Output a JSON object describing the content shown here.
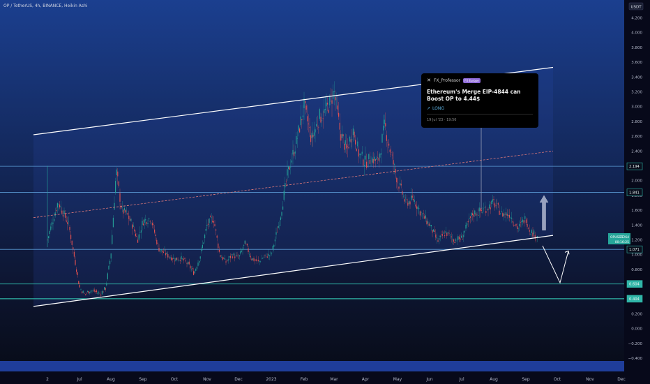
{
  "header": {
    "symbol_title": "OP / TetherUS, 4h, BINANCE, Heikin Ashi"
  },
  "quote_currency": "USDT",
  "current_price_label": {
    "symbol": "OPUSDT",
    "price": "1.264",
    "countdown": "00:16:25"
  },
  "idea_card": {
    "author": "FX_Professor",
    "badge": "FX Europe",
    "title": "Ethereum's Merge EIP-4844 can Boost OP to 4.44$",
    "direction": "LONG",
    "timestamp": "19 Jul '23 · 19:56"
  },
  "colors": {
    "background_top": "#1b3f8f",
    "background_bottom": "#070a14",
    "channel_line": "#ffffff",
    "midline_dashed": "#e07a7a",
    "level_line": "#5b9bd5",
    "level_tag": "#30b6a8",
    "up_candle": "#26a69a",
    "down_candle": "#ef5350",
    "arrow_up": "#c5cbe0",
    "price_tag": "#26a69a"
  },
  "chart_data": {
    "type": "candlestick",
    "title": "OP / TetherUS, 4h, BINANCE, Heikin Ashi",
    "ylim": [
      -0.4,
      4.4
    ],
    "y_ticks": [
      "4.200",
      "4.000",
      "3.800",
      "3.600",
      "3.400",
      "3.200",
      "3.000",
      "2.800",
      "2.600",
      "2.400",
      "2.200",
      "2.000",
      "1.800",
      "1.600",
      "1.400",
      "1.200",
      "1.000",
      "0.800",
      "0.600",
      "0.400",
      "0.200",
      "0.000",
      "−0.200",
      "−0.400"
    ],
    "x_ticks": [
      "2",
      "Jul",
      "Aug",
      "Sep",
      "Oct",
      "Nov",
      "Dec",
      "2023",
      "Feb",
      "Mar",
      "Apr",
      "May",
      "Jun",
      "Jul",
      "Aug",
      "Sep",
      "Oct",
      "Nov",
      "Dec"
    ],
    "horizontal_levels": [
      {
        "value": 2.194,
        "label": "2.194",
        "tag": "outline"
      },
      {
        "value": 1.841,
        "label": "1.841",
        "tag": "outline"
      },
      {
        "value": 1.071,
        "label": "1.071",
        "tag": "outline"
      },
      {
        "value": 0.604,
        "label": "0.604",
        "tag": "filled"
      },
      {
        "value": 0.404,
        "label": "0.404",
        "tag": "filled"
      }
    ],
    "price_path": [
      [
        "2",
        1.2
      ],
      [
        "2",
        1.72
      ],
      [
        "2",
        1.4
      ],
      [
        "Jul",
        0.56
      ],
      [
        "Jul",
        0.46
      ],
      [
        "Jul",
        0.52
      ],
      [
        "Jul",
        0.5
      ],
      [
        "Jul",
        0.47
      ],
      [
        "Jul",
        0.55
      ],
      [
        "Aug",
        1.0
      ],
      [
        "Aug",
        2.15
      ],
      [
        "Aug",
        1.6
      ],
      [
        "Aug",
        1.55
      ],
      [
        "Aug",
        1.4
      ],
      [
        "Aug",
        1.2
      ],
      [
        "Sep",
        1.45
      ],
      [
        "Sep",
        1.5
      ],
      [
        "Sep",
        1.08
      ],
      [
        "Sep",
        1.0
      ],
      [
        "Oct",
        0.94
      ],
      [
        "Oct",
        0.95
      ],
      [
        "Oct",
        0.88
      ],
      [
        "Oct",
        0.75
      ],
      [
        "Oct",
        1.0
      ],
      [
        "Nov",
        1.4
      ],
      [
        "Nov",
        1.5
      ],
      [
        "Nov",
        1.0
      ],
      [
        "Nov",
        0.9
      ],
      [
        "Nov",
        1.0
      ],
      [
        "Dec",
        0.95
      ],
      [
        "Dec",
        1.15
      ],
      [
        "Dec",
        0.95
      ],
      [
        "Dec",
        0.9
      ],
      [
        "Dec",
        0.98
      ],
      [
        "2023",
        1.0
      ],
      [
        "2023",
        1.45
      ],
      [
        "2023",
        2.1
      ],
      [
        "2023",
        2.5
      ],
      [
        "Feb",
        3.0
      ],
      [
        "Feb",
        2.55
      ],
      [
        "Feb",
        2.85
      ],
      [
        "Feb",
        2.95
      ],
      [
        "Mar",
        3.2
      ],
      [
        "Mar",
        2.65
      ],
      [
        "Mar",
        2.4
      ],
      [
        "Mar",
        2.7
      ],
      [
        "Mar",
        2.35
      ],
      [
        "Apr",
        2.25
      ],
      [
        "Apr",
        2.3
      ],
      [
        "Apr",
        2.25
      ],
      [
        "Apr",
        2.75
      ],
      [
        "Apr",
        2.35
      ],
      [
        "May",
        2.0
      ],
      [
        "May",
        1.7
      ],
      [
        "May",
        1.75
      ],
      [
        "May",
        1.55
      ],
      [
        "Jun",
        1.4
      ],
      [
        "Jun",
        1.18
      ],
      [
        "Jun",
        1.3
      ],
      [
        "Jun",
        1.2
      ],
      [
        "Jul",
        1.22
      ],
      [
        "Jul",
        1.55
      ],
      [
        "Jul",
        1.6
      ],
      [
        "Aug",
        1.7
      ],
      [
        "Aug",
        1.55
      ],
      [
        "Aug",
        1.55
      ],
      [
        "Aug",
        1.35
      ],
      [
        "Sep",
        1.5
      ],
      [
        "Sep",
        1.35
      ],
      [
        "Sep",
        1.3
      ],
      [
        "Sep",
        1.264
      ]
    ],
    "channel": {
      "upper": {
        "start": [
          "2",
          2.62
        ],
        "end": [
          "Sep",
          3.53
        ]
      },
      "lower": {
        "start": [
          "2",
          0.3
        ],
        "end": [
          "Sep",
          1.26
        ]
      },
      "mid": {
        "start": [
          "2",
          1.5
        ],
        "end": [
          "Sep",
          2.4
        ]
      }
    },
    "forecast_arrows": {
      "up_arrow": {
        "from": 1.33,
        "to": 1.8
      },
      "zigzag": [
        1.12,
        0.62,
        1.05
      ]
    },
    "last_price": 1.264
  }
}
